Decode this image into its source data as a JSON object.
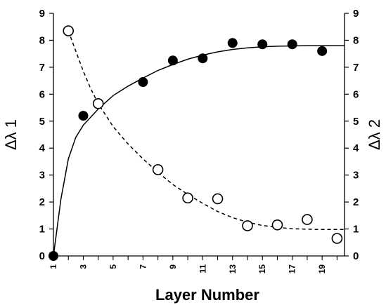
{
  "chart_data": {
    "type": "scatter",
    "xlabel": "Layer Number",
    "ylabel_left": "Δλ 1",
    "ylabel_right": "Δλ 2",
    "x_ticks": [
      "1",
      "3",
      "5",
      "7",
      "9",
      "11",
      "13",
      "15",
      "17",
      "19"
    ],
    "y_ticks": [
      "0",
      "1",
      "2",
      "3",
      "4",
      "5",
      "6",
      "7",
      "8",
      "9"
    ],
    "xlim": [
      1,
      20.5
    ],
    "ylim": [
      0,
      9
    ],
    "grid": false,
    "legend": "none",
    "series": [
      {
        "marker": "filled-circle",
        "axis": "left",
        "x": [
          1,
          3,
          7,
          9,
          11,
          13,
          15,
          17,
          19
        ],
        "y": [
          0,
          5.2,
          6.45,
          7.25,
          7.33,
          7.9,
          7.85,
          7.85,
          7.6
        ],
        "fit": {
          "style": "solid",
          "x": [
            1,
            1.5,
            2,
            2.5,
            3,
            3.5,
            4,
            5,
            6,
            7,
            8,
            9,
            10,
            11,
            12,
            13,
            14,
            15,
            16,
            17,
            18,
            19,
            20,
            20.5
          ],
          "y": [
            0,
            2.1,
            3.6,
            4.4,
            4.85,
            5.15,
            5.45,
            5.95,
            6.3,
            6.6,
            6.88,
            7.1,
            7.3,
            7.45,
            7.57,
            7.66,
            7.72,
            7.76,
            7.78,
            7.79,
            7.8,
            7.8,
            7.8,
            7.8
          ]
        }
      },
      {
        "marker": "open-circle",
        "axis": "right",
        "x": [
          2,
          4,
          8,
          10,
          12,
          14,
          16,
          18,
          20
        ],
        "y": [
          8.35,
          5.65,
          3.2,
          2.15,
          2.12,
          1.12,
          1.15,
          1.35,
          0.65
        ],
        "fit": {
          "style": "dashed",
          "x": [
            2,
            2.5,
            3,
            3.5,
            4,
            5,
            6,
            7,
            8,
            9,
            10,
            11,
            12,
            13,
            14,
            15,
            16,
            17,
            18,
            19,
            20,
            20.5
          ],
          "y": [
            8.35,
            7.6,
            6.85,
            6.2,
            5.65,
            4.8,
            4.15,
            3.6,
            3.1,
            2.65,
            2.28,
            1.95,
            1.65,
            1.42,
            1.25,
            1.13,
            1.06,
            1.01,
            0.99,
            0.98,
            0.98,
            0.98
          ]
        }
      }
    ]
  }
}
